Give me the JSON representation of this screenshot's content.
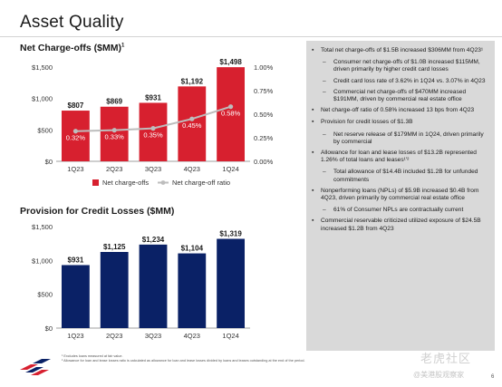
{
  "page": {
    "title": "Asset Quality",
    "page_number": "6"
  },
  "chart_data": [
    {
      "type": "bar",
      "title": "Net Charge-offs ($MM)",
      "title_footnote": "1",
      "categories": [
        "1Q23",
        "2Q23",
        "3Q23",
        "4Q23",
        "1Q24"
      ],
      "y_ticks": [
        "$1,500",
        "$1,000",
        "$500",
        "$0"
      ],
      "y2_ticks": [
        "1.00%",
        "0.75%",
        "0.50%",
        "0.25%",
        "0.00%"
      ],
      "ylim": [
        0,
        1500
      ],
      "y2lim": [
        0,
        1.0
      ],
      "series": [
        {
          "name": "Net charge-offs",
          "kind": "bar",
          "color": "#d7202f",
          "values": [
            807,
            869,
            931,
            1192,
            1498
          ],
          "labels": [
            "$807",
            "$869",
            "$931",
            "$1,192",
            "$1,498"
          ]
        },
        {
          "name": "Net charge-off ratio",
          "kind": "line",
          "axis": "right",
          "color": "#bdbdbd",
          "values": [
            0.32,
            0.33,
            0.35,
            0.45,
            0.58
          ],
          "labels": [
            "0.32%",
            "0.33%",
            "0.35%",
            "0.45%",
            "0.58%"
          ]
        }
      ],
      "legend": "bottom"
    },
    {
      "type": "bar",
      "title": "Provision for Credit Losses ($MM)",
      "categories": [
        "1Q23",
        "2Q23",
        "3Q23",
        "4Q23",
        "1Q24"
      ],
      "y_ticks": [
        "$1,500",
        "$1,000",
        "$500",
        "$0"
      ],
      "ylim": [
        0,
        1500
      ],
      "series": [
        {
          "name": "Provision for credit losses",
          "kind": "bar",
          "color": "#0a2166",
          "values": [
            931,
            1125,
            1234,
            1104,
            1319
          ],
          "labels": [
            "$931",
            "$1,125",
            "$1,234",
            "$1,104",
            "$1,319"
          ]
        }
      ]
    }
  ],
  "panel": {
    "items": [
      {
        "level": 1,
        "text": "Total net charge-offs of $1.5B increased $306MM from 4Q23¹"
      },
      {
        "level": 2,
        "text": "Consumer net charge-offs of $1.0B increased $115MM, driven primarily by higher credit card losses"
      },
      {
        "level": 2,
        "text": "Credit card loss rate of 3.62% in 1Q24 vs. 3.07% in 4Q23"
      },
      {
        "level": 2,
        "text": "Commercial net charge-offs of $470MM increased $191MM, driven by commercial real estate office"
      },
      {
        "level": 1,
        "text": "Net charge-off ratio of 0.58% increased 13 bps from 4Q23"
      },
      {
        "level": 1,
        "text": "Provision for credit losses of $1.3B"
      },
      {
        "level": 2,
        "text": "Net reserve release of $179MM in 1Q24, driven primarily by commercial"
      },
      {
        "level": 1,
        "text": "Allowance for loan and lease losses of $13.2B represented 1.26% of total loans and leases¹'²"
      },
      {
        "level": 2,
        "text": "Total allowance of $14.4B included $1.2B for unfunded commitments"
      },
      {
        "level": 1,
        "text": "Nonperforming loans (NPLs) of $5.9B increased $0.4B from 4Q23, driven primarily by commercial real estate office"
      },
      {
        "level": 2,
        "text": "61% of Consumer NPLs are contractually current"
      },
      {
        "level": 1,
        "text": "Commercial reservable criticized utilized exposure of $24.5B increased $1.2B from 4Q23"
      }
    ]
  },
  "footnotes": {
    "note1": "¹ Excludes loans measured at fair value.",
    "note2": "² Allowance for loan and lease losses ratio is calculated as allowance for loan and lease losses divided by loans and leases outstanding at the end of the period."
  },
  "watermark": {
    "text1": "老虎社区",
    "text2": "@美港股观察家"
  }
}
